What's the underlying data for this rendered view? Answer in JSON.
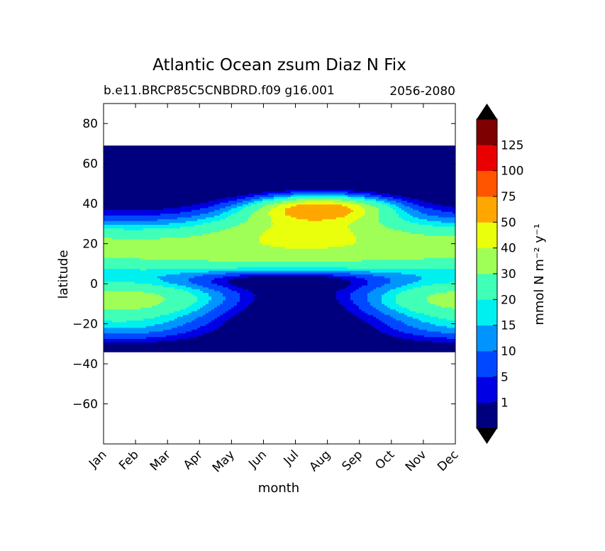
{
  "chart_data": {
    "type": "heatmap",
    "title": "Atlantic Ocean zsum Diaz N Fix",
    "subtitle_left": "b.e11.BRCP85C5CNBDRD.f09 g16.001",
    "subtitle_right": "2056-2080",
    "xlabel": "month",
    "ylabel": "latitude",
    "x_categories": [
      "Jan",
      "Feb",
      "Mar",
      "Apr",
      "May",
      "Jun",
      "Jul",
      "Aug",
      "Sep",
      "Oct",
      "Nov",
      "Dec"
    ],
    "ylim": [
      -80,
      90
    ],
    "yticks": [
      -60,
      -40,
      -20,
      0,
      20,
      40,
      60,
      80
    ],
    "data_lat_range": [
      -34,
      69
    ],
    "colorbar": {
      "label": "mmol N m⁻² y⁻¹",
      "levels": [
        1,
        5,
        10,
        15,
        20,
        30,
        40,
        50,
        75,
        100,
        125
      ],
      "tick_labels": [
        "1",
        "5",
        "10",
        "15",
        "20",
        "30",
        "40",
        "50",
        "75",
        "100",
        "125"
      ],
      "colors": [
        "#00007f",
        "#0000e5",
        "#0048ff",
        "#0094ff",
        "#00f0f0",
        "#40ffb6",
        "#a0ff56",
        "#eaff0c",
        "#ffa700",
        "#ff5500",
        "#ea0000",
        "#7f0000"
      ],
      "extend": "both"
    },
    "grid": false
  }
}
